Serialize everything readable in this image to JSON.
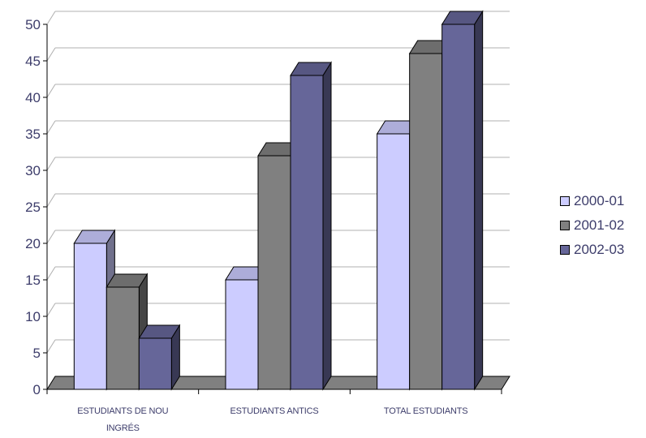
{
  "chart_data": {
    "type": "bar",
    "categories": [
      [
        "ESTUDIANTS DE NOU",
        "INGRÉS"
      ],
      [
        "ESTUDIANTS ANTICS"
      ],
      [
        "TOTAL ESTUDIANTS"
      ]
    ],
    "series": [
      {
        "name": "2000-01",
        "values": [
          20,
          15,
          35
        ],
        "color": "#ccccff"
      },
      {
        "name": "2001-02",
        "values": [
          14,
          32,
          46
        ],
        "color": "#808080"
      },
      {
        "name": "2002-03",
        "values": [
          7,
          43,
          50
        ],
        "color": "#666699"
      }
    ],
    "ylim": [
      0,
      50
    ],
    "yticks": [
      0,
      5,
      10,
      15,
      20,
      25,
      30,
      35,
      40,
      45,
      50
    ],
    "grid": true,
    "style": "3d-clustered-column",
    "legend_position": "right",
    "floor_color": "#808080"
  }
}
